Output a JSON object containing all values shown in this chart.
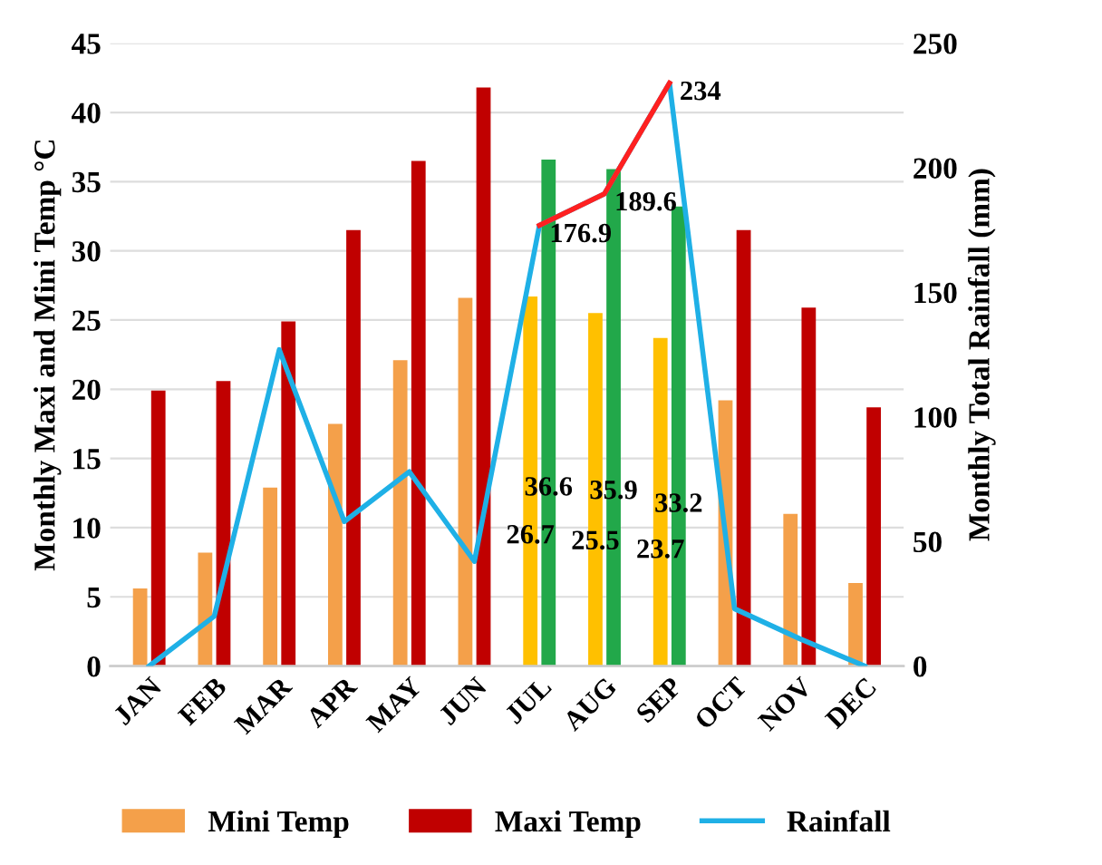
{
  "chart_data": {
    "type": "bar",
    "ylabel": "Monthly Maxi and Mini Temp °C",
    "y2label": "Monthly Total Rainfall (mm)",
    "categories": [
      "JAN",
      "FEB",
      "MAR",
      "APR",
      "MAY",
      "JUN",
      "JUL",
      "AUG",
      "SEP",
      "OCT",
      "NOV",
      "DEC"
    ],
    "series": [
      {
        "name": "Mini Temp",
        "color": "#f4a04a",
        "colors": [
          "#f4a04a",
          "#f4a04a",
          "#f4a04a",
          "#f4a04a",
          "#f4a04a",
          "#f4a04a",
          "#ffc000",
          "#ffc000",
          "#ffc000",
          "#f4a04a",
          "#f4a04a",
          "#f4a04a"
        ],
        "values": [
          5.6,
          8.2,
          12.9,
          17.5,
          22.1,
          26.6,
          26.7,
          25.5,
          23.7,
          19.2,
          11,
          6
        ],
        "value_labels": [
          null,
          null,
          null,
          null,
          null,
          null,
          "26.7",
          "25.5",
          "23.7",
          null,
          null,
          null
        ]
      },
      {
        "name": "Maxi Temp",
        "color": "#c00000",
        "colors": [
          "#c00000",
          "#c00000",
          "#c00000",
          "#c00000",
          "#c00000",
          "#c00000",
          "#22a84a",
          "#22a84a",
          "#22a84a",
          "#c00000",
          "#c00000",
          "#c00000"
        ],
        "values": [
          19.9,
          20.6,
          24.9,
          31.5,
          36.5,
          41.8,
          36.6,
          35.9,
          33.2,
          31.5,
          25.9,
          18.7
        ],
        "value_labels": [
          null,
          null,
          null,
          null,
          null,
          null,
          "36.6",
          "35.9",
          "33.2",
          null,
          null,
          null
        ]
      },
      {
        "name": "Rainfall",
        "type": "line",
        "axis": "y2",
        "color": "#1fb0e6",
        "values": [
          0,
          20,
          127,
          58,
          78,
          42,
          176.9,
          189.6,
          234,
          23,
          11,
          0
        ]
      },
      {
        "type": "line",
        "axis": "y2",
        "color": "#ff2020",
        "values": [
          null,
          null,
          null,
          null,
          null,
          null,
          176.9,
          189.6,
          234,
          null,
          null,
          null
        ],
        "value_labels": [
          null,
          null,
          null,
          null,
          null,
          null,
          "176.9",
          "189.6",
          "234",
          null,
          null,
          null
        ]
      }
    ],
    "ylim": [
      0,
      45
    ],
    "yticks": [
      0,
      5,
      10,
      15,
      20,
      25,
      30,
      35,
      40,
      45
    ],
    "y2lim": [
      0,
      250
    ],
    "y2ticks": [
      0,
      50,
      100,
      150,
      200,
      250
    ],
    "grid": "y",
    "legend": "bottom"
  }
}
